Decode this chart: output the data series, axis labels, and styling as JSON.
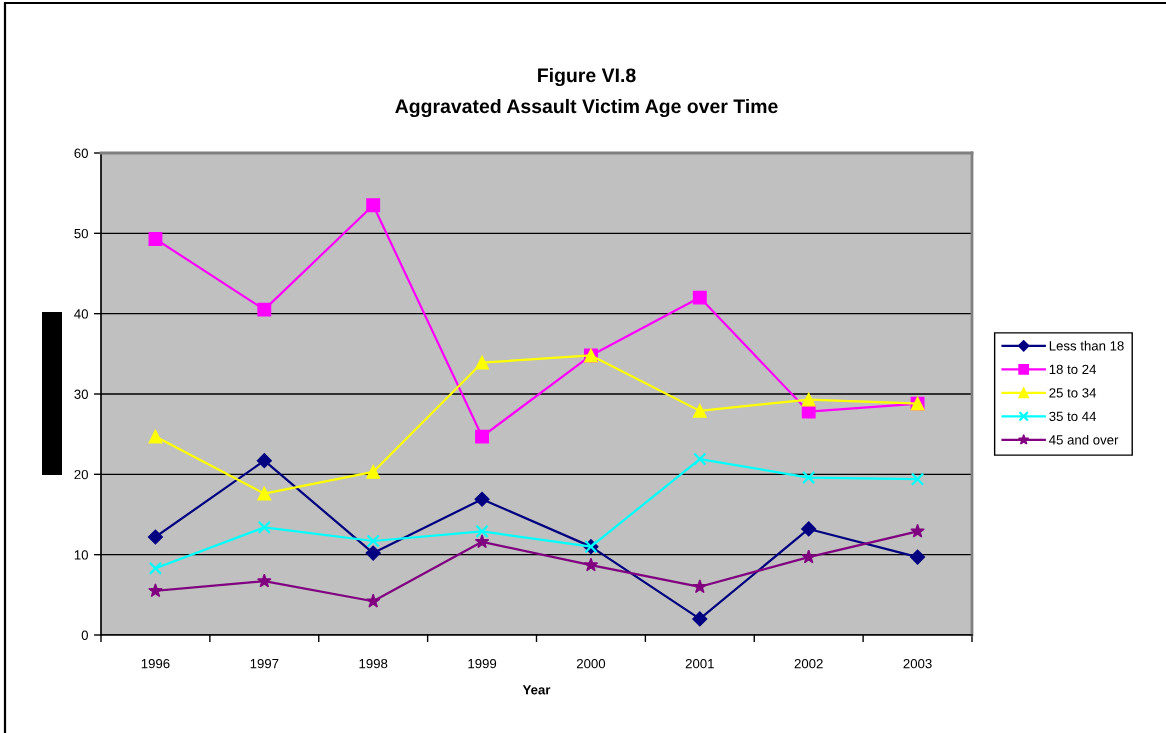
{
  "chart_data": {
    "type": "line",
    "title": "Figure VI.8",
    "subtitle": "Aggravated Assault Victim Age over Time",
    "xlabel": "Year",
    "categories": [
      "1996",
      "1997",
      "1998",
      "1999",
      "2000",
      "2001",
      "2002",
      "2003"
    ],
    "ylim": [
      0,
      60
    ],
    "yticks": [
      0,
      10,
      20,
      30,
      40,
      50,
      60
    ],
    "grid": "y",
    "legend": "right",
    "line_style": "solid",
    "series": [
      {
        "name": "Less than 18",
        "color": "#000080",
        "marker": "diamond",
        "values": [
          12.2,
          21.7,
          10.2,
          16.9,
          11.0,
          2.0,
          13.2,
          9.7
        ]
      },
      {
        "name": "18 to 24",
        "color": "#ff00ff",
        "marker": "square",
        "values": [
          49.3,
          40.5,
          53.5,
          24.7,
          34.8,
          42.0,
          27.8,
          28.8
        ]
      },
      {
        "name": "25 to 34",
        "color": "#ffff00",
        "marker": "triangle",
        "values": [
          24.7,
          17.6,
          20.3,
          33.9,
          34.8,
          27.9,
          29.3,
          28.8
        ]
      },
      {
        "name": "35 to 44",
        "color": "#00ffff",
        "marker": "cross",
        "values": [
          8.3,
          13.4,
          11.7,
          12.9,
          11.0,
          21.9,
          19.6,
          19.4
        ]
      },
      {
        "name": "45 and over",
        "color": "#800080",
        "marker": "star",
        "values": [
          5.5,
          6.7,
          4.2,
          11.6,
          8.7,
          6.0,
          9.7,
          12.9
        ]
      }
    ]
  }
}
